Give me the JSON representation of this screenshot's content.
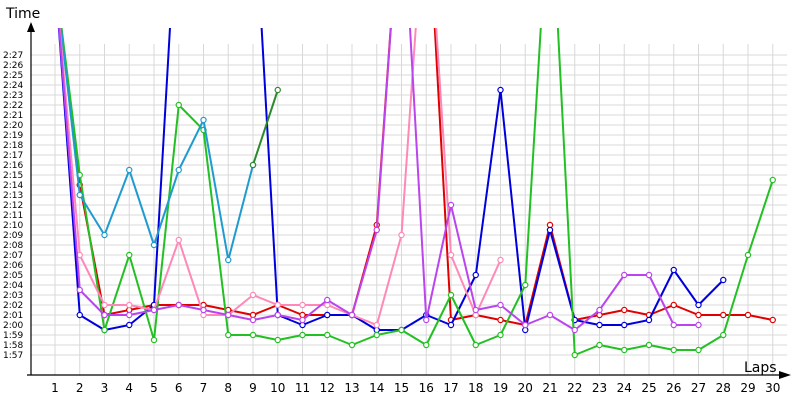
{
  "chart_data": {
    "type": "line",
    "xlabel": "Laps",
    "ylabel": "Time",
    "x": [
      1,
      2,
      3,
      4,
      5,
      6,
      7,
      8,
      9,
      10,
      11,
      12,
      13,
      14,
      15,
      16,
      17,
      18,
      19,
      20,
      21,
      22,
      23,
      24,
      25,
      26,
      27,
      28,
      29,
      30
    ],
    "y_ticks": [
      "1:57",
      "1:58",
      "1:59",
      "2:00",
      "2:01",
      "2:02",
      "2:03",
      "2:04",
      "2:05",
      "2:06",
      "2:07",
      "2:08",
      "2:09",
      "2:10",
      "2:11",
      "2:12",
      "2:13",
      "2:14",
      "2:15",
      "2:16",
      "2:17",
      "2:18",
      "2:19",
      "2:20",
      "2:21",
      "2:22",
      "2:23",
      "2:24",
      "2:25",
      "2:26",
      "2:27"
    ],
    "ylim": [
      "1:56",
      "2:30"
    ],
    "grid": true,
    "legend": false,
    "series": [
      {
        "color": "#e00000",
        "values": [
          "2:35",
          "2:14",
          "2:01",
          "2:01.5",
          "2:02",
          "2:02",
          "2:02",
          "2:01.5",
          "2:01",
          "2:02",
          "2:01",
          "2:01",
          "2:01",
          "2:10",
          "2:45",
          "2:45",
          "2:00.5",
          "2:01",
          "2:00.5",
          "2:00",
          "2:10",
          "2:00.5",
          "2:01",
          "2:01.5",
          "2:01",
          "2:02",
          "2:01",
          "2:01",
          "2:01",
          "2:00.5"
        ]
      },
      {
        "color": "#0000dd",
        "values": [
          "2:35",
          "2:01",
          "1:59.5",
          "2:00",
          "2:02",
          "2:45",
          "2:45",
          "2:45",
          "2:45",
          "2:01",
          "2:00",
          "2:01",
          "2:01",
          "1:59.5",
          "1:59.5",
          "2:01",
          "2:00",
          "2:05",
          "2:23.5",
          "1:59.5",
          "2:09.5",
          "2:00.5",
          "2:00",
          "2:00",
          "2:00.5",
          "2:05.5",
          "2:02",
          "2:04.5",
          null,
          null
        ]
      },
      {
        "color": "#22c022",
        "values": [
          "2:35",
          "2:15",
          "1:59.5",
          "2:07",
          "1:58.5",
          "2:22",
          "2:19.5",
          "1:59",
          "1:59",
          "1:58.5",
          "1:59",
          "1:59",
          "1:58",
          "1:59",
          "1:59.5",
          "1:58",
          "2:03",
          "1:58",
          "1:59",
          "2:04",
          "2:45",
          "1:57",
          "1:58",
          "1:57.5",
          "1:58",
          "1:57.5",
          "1:57.5",
          "1:59",
          "2:07",
          "2:14.5"
        ]
      },
      {
        "color": "#1f9bd0",
        "values": [
          "2:35",
          "2:13",
          "2:09",
          "2:15.5",
          "2:08",
          "2:15.5",
          "2:20.5",
          "2:06.5",
          "2:16",
          null,
          null,
          null,
          null,
          null,
          null,
          null,
          null,
          null,
          null,
          null,
          null,
          null,
          null,
          null,
          null,
          null,
          null,
          null,
          null,
          null
        ]
      },
      {
        "color": "#2c8a2c",
        "values": [
          null,
          null,
          null,
          null,
          null,
          null,
          null,
          null,
          "2:16",
          "2:23.5",
          null,
          null,
          null,
          null,
          null,
          null,
          null,
          null,
          null,
          null,
          null,
          null,
          null,
          null,
          null,
          null,
          null,
          null,
          null,
          null
        ]
      },
      {
        "color": "#ff88b8",
        "values": [
          "2:35",
          "2:07",
          "2:02",
          "2:02",
          "2:01.5",
          "2:08.5",
          "2:01",
          "2:01",
          "2:03",
          "2:02",
          "2:02",
          "2:02",
          "2:01",
          "2:00",
          "2:09",
          "2:45",
          "2:07",
          "2:01",
          "2:06.5",
          null,
          null,
          null,
          null,
          null,
          null,
          null,
          null,
          null,
          null,
          null
        ]
      },
      {
        "color": "#bb44ee",
        "values": [
          "2:35",
          "2:03.5",
          "2:01",
          "2:01",
          "2:01.5",
          "2:02",
          "2:01.5",
          "2:01",
          "2:00.5",
          "2:01",
          "2:00.5",
          "2:02.5",
          "2:01",
          "2:09.5",
          "2:45",
          "2:00.5",
          "2:12",
          "2:01.5",
          "2:02",
          "2:00",
          "2:01",
          "1:59.5",
          "2:01.5",
          "2:05",
          "2:05",
          "2:00",
          "2:00",
          null,
          null,
          null
        ]
      }
    ]
  }
}
